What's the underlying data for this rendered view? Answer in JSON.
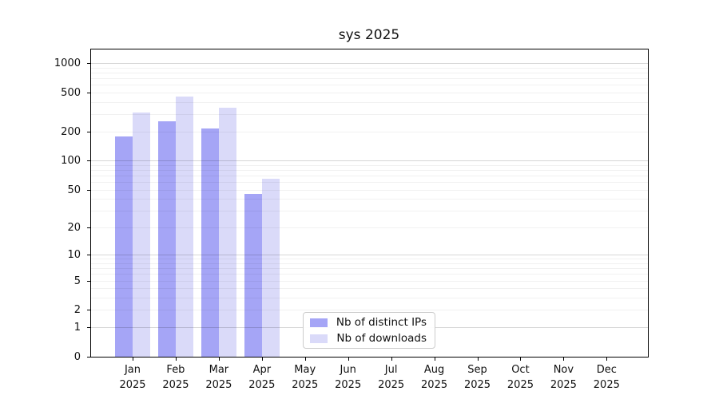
{
  "title": "sys 2025",
  "legend": [
    {
      "label": "Nb of distinct IPs",
      "color": "#a5a5f6"
    },
    {
      "label": "Nb of downloads",
      "color": "#dadaf9"
    }
  ],
  "chart_data": {
    "type": "bar",
    "title": "sys 2025",
    "categories": [
      "Jan 2025",
      "Feb 2025",
      "Mar 2025",
      "Apr 2025",
      "May 2025",
      "Jun 2025",
      "Jul 2025",
      "Aug 2025",
      "Sep 2025",
      "Oct 2025",
      "Nov 2025",
      "Dec 2025"
    ],
    "series": [
      {
        "name": "Nb of distinct IPs",
        "color": "#a5a5f6",
        "values": [
          178,
          252,
          215,
          45,
          null,
          null,
          null,
          null,
          null,
          null,
          null,
          null
        ]
      },
      {
        "name": "Nb of downloads",
        "color": "#dadaf9",
        "values": [
          312,
          455,
          348,
          65,
          null,
          null,
          null,
          null,
          null,
          null,
          null,
          null
        ]
      }
    ],
    "xlabel": "",
    "ylabel": "",
    "yscale": "log10(1+x)",
    "yticks": [
      0,
      1,
      2,
      5,
      10,
      20,
      50,
      100,
      200,
      500,
      1000
    ],
    "ylim": [
      0,
      1350
    ],
    "grid": "horizontal minor log gridlines, darker lines at decades 1/10/100/1000",
    "legend_position": "inside plot, lower center-left"
  }
}
